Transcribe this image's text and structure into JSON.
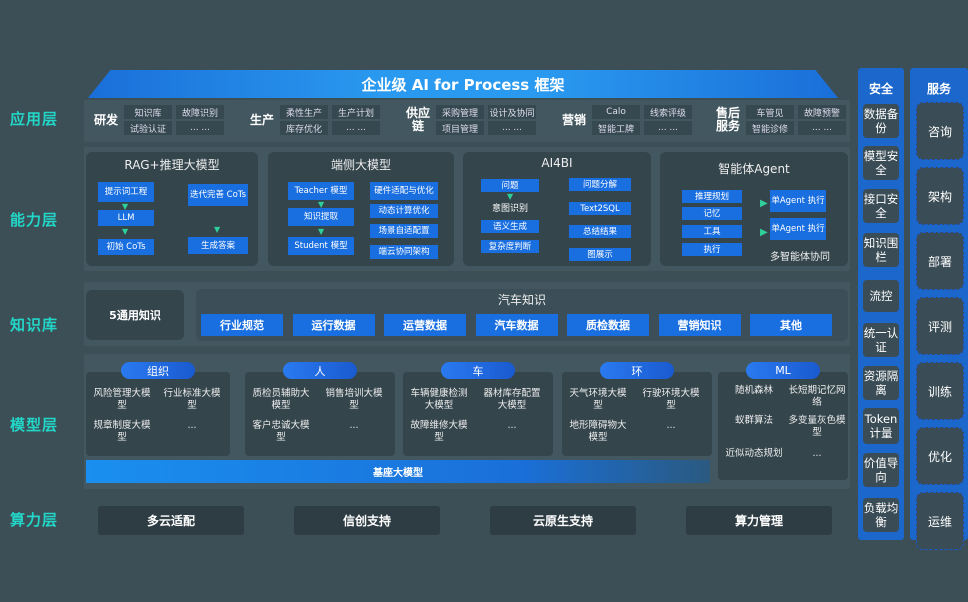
{
  "title": "企业级 AI for Process 框架",
  "layers": {
    "app": "应用层",
    "capability": "能力层",
    "knowledge": "知识库",
    "model": "模型层",
    "compute": "算力层"
  },
  "app_groups": [
    {
      "name": "研发",
      "cells": [
        "知识库",
        "故障识别",
        "试验认证",
        "... ..."
      ]
    },
    {
      "name": "生产",
      "cells": [
        "柔性生产",
        "生产计划",
        "库存优化",
        "... ..."
      ]
    },
    {
      "name": "供应链",
      "cells": [
        "采购管理",
        "设计及协同",
        "项目管理",
        "... ..."
      ]
    },
    {
      "name": "营销",
      "cells": [
        "Calo",
        "线索评级",
        "智能工牌",
        "... ..."
      ]
    },
    {
      "name": "售后服务",
      "cells": [
        "车管见",
        "故障预警",
        "智能诊修",
        "... ..."
      ]
    }
  ],
  "capability": {
    "rag": {
      "title": "RAG+推理大模型",
      "items": [
        "提示词工程",
        "LLM",
        "初始 CoTs",
        "迭代完善 CoTs",
        "生成答案"
      ]
    },
    "edge": {
      "title": "端侧大模型",
      "left": [
        "Teacher 模型",
        "知识提取",
        "Student 模型"
      ],
      "right": [
        "硬件适配与优化",
        "动态计算优化",
        "场景自适配置",
        "端云协同架构"
      ]
    },
    "ai4bi": {
      "title": "AI4BI",
      "left": [
        "问题",
        "意图识别",
        "语义生成",
        "复杂度判断"
      ],
      "right": [
        "问题分解",
        "Text2SQL",
        "总结结果",
        "图展示"
      ]
    },
    "agent": {
      "title": "智能体Agent",
      "left": [
        "推理规划",
        "记忆",
        "工具",
        "执行"
      ],
      "right": [
        "单Agent 执行",
        "单Agent 执行"
      ],
      "caption": "多智能体协同"
    }
  },
  "knowledge": {
    "general": "5通用知识",
    "auto_title": "汽车知识",
    "items": [
      "行业规范",
      "运行数据",
      "运营数据",
      "汽车数据",
      "质检数据",
      "营销知识",
      "其他"
    ]
  },
  "model": {
    "groups": [
      {
        "label": "组织",
        "items": [
          "风险管理大模型",
          "行业标准大模型",
          "规章制度大模型",
          "..."
        ]
      },
      {
        "label": "人",
        "items": [
          "质检员辅助大模型",
          "销售培训大模型",
          "客户忠诚大模型",
          "..."
        ]
      },
      {
        "label": "车",
        "items": [
          "车辆健康检测大模型",
          "器材库存配置大模型",
          "故障维修大模型",
          "..."
        ]
      },
      {
        "label": "环",
        "items": [
          "天气环境大模型",
          "行驶环境大模型",
          "地形障碍物大模型",
          "..."
        ]
      },
      {
        "label": "ML",
        "items": [
          "随机森林",
          "长短期记忆网络",
          "蚁群算法",
          "多变量灰色模型",
          "近似动态规划",
          "..."
        ]
      }
    ],
    "base": "基座大模型"
  },
  "compute": [
    "多云适配",
    "信创支持",
    "云原生支持",
    "算力管理"
  ],
  "security": {
    "title": "安全",
    "items": [
      "数据备份",
      "模型安全",
      "接口安全",
      "知识围栏",
      "流控",
      "统一认证",
      "资源隔离",
      "Token计量",
      "价值导向",
      "负载均衡"
    ]
  },
  "service": {
    "title": "服务",
    "items": [
      "咨询",
      "架构",
      "部署",
      "评测",
      "训练",
      "优化",
      "运维"
    ]
  },
  "colors": {
    "background": "#3c4e56",
    "accent": "#1a6fe0",
    "layer_label": "#22d6c8"
  }
}
